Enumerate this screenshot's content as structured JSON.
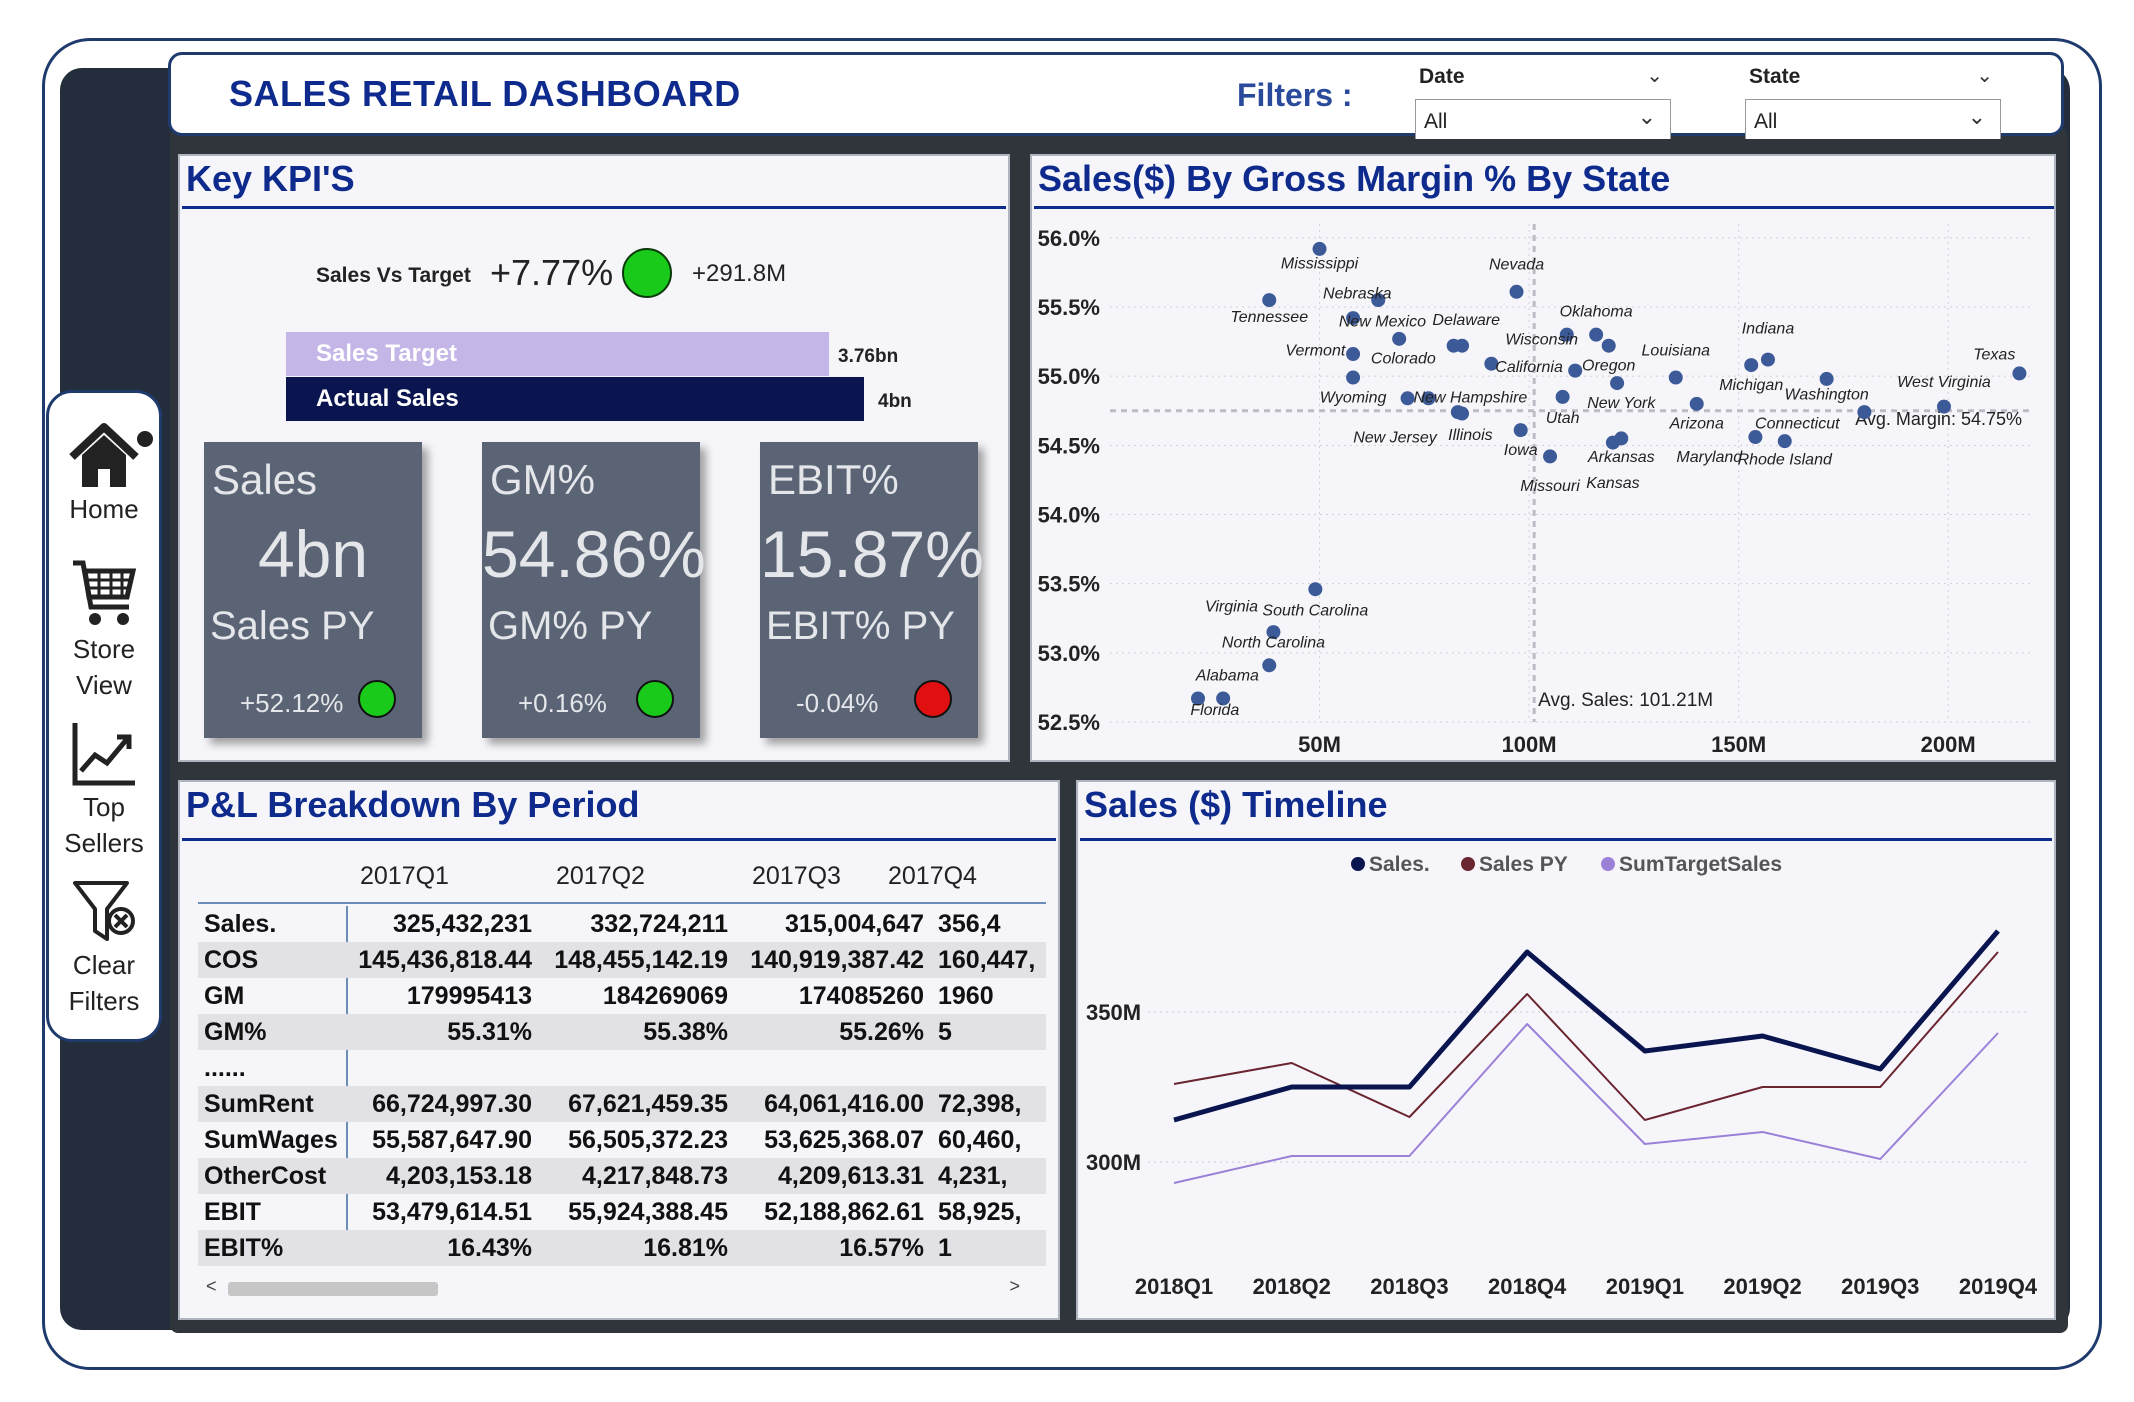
{
  "header": {
    "title": "SALES RETAIL DASHBOARD",
    "filters_label": "Filters :",
    "date_filter": {
      "label": "Date",
      "value": "All"
    },
    "state_filter": {
      "label": "State",
      "value": "All"
    }
  },
  "nav": {
    "items": [
      {
        "label_1": "Home",
        "label_2": "",
        "icon": "home-icon"
      },
      {
        "label_1": "Store",
        "label_2": "View",
        "icon": "cart-icon"
      },
      {
        "label_1": "Top",
        "label_2": "Sellers",
        "icon": "trend-icon"
      },
      {
        "label_1": "Clear",
        "label_2": "Filters",
        "icon": "clear-filter-icon"
      }
    ]
  },
  "kpi": {
    "title": "Key KPI'S",
    "sales_vs_target_label": "Sales Vs Target",
    "sales_vs_target_pct": "+7.77%",
    "sales_vs_target_abs": "+291.8M",
    "sales_target_label": "Sales Target",
    "sales_target_value": "3.76bn",
    "actual_sales_label": "Actual Sales",
    "actual_sales_value": "4bn",
    "sales_target_fraction": 0.94,
    "actual_sales_fraction": 1.0,
    "cards": [
      {
        "label": "Sales",
        "value": "4bn",
        "py_label": "Sales PY",
        "delta": "+52.12%",
        "status_color": "#1aca1a"
      },
      {
        "label": "GM%",
        "value": "54.86%",
        "py_label": "GM% PY",
        "delta": "+0.16%",
        "status_color": "#1aca1a"
      },
      {
        "label": "EBIT%",
        "value": "15.87%",
        "py_label": "EBIT% PY",
        "delta": "-0.04%",
        "status_color": "#e01010"
      }
    ]
  },
  "scatter": {
    "title": "Sales($) By Gross Margin % By State"
  },
  "pl": {
    "title": "P&L Breakdown By Period",
    "columns": [
      "2017Q1",
      "2017Q2",
      "2017Q3",
      "2017Q4"
    ],
    "rows": [
      {
        "label": "Sales.",
        "values": [
          "325,432,231",
          "332,724,211",
          "315,004,647",
          "356,4"
        ]
      },
      {
        "label": "COS",
        "values": [
          "145,436,818.44",
          "148,455,142.19",
          "140,919,387.42",
          "160,447,"
        ]
      },
      {
        "label": "GM",
        "values": [
          "179995413",
          "184269069",
          "174085260",
          "1960"
        ]
      },
      {
        "label": "GM%",
        "values": [
          "55.31%",
          "55.38%",
          "55.26%",
          "5"
        ]
      },
      {
        "label": "......",
        "values": [
          "",
          "",
          "",
          ""
        ]
      },
      {
        "label": "SumRent",
        "values": [
          "66,724,997.30",
          "67,621,459.35",
          "64,061,416.00",
          "72,398,"
        ]
      },
      {
        "label": "SumWages",
        "values": [
          "55,587,647.90",
          "56,505,372.23",
          "53,625,368.07",
          "60,460,"
        ]
      },
      {
        "label": "OtherCost",
        "values": [
          "4,203,153.18",
          "4,217,848.73",
          "4,209,613.31",
          "4,231,"
        ]
      },
      {
        "label": "EBIT",
        "values": [
          "53,479,614.51",
          "55,924,388.45",
          "52,188,862.61",
          "58,925,"
        ]
      },
      {
        "label": "EBIT%",
        "values": [
          "16.43%",
          "16.81%",
          "16.57%",
          "1"
        ]
      }
    ],
    "scroll_left": "<",
    "scroll_right": ">"
  },
  "timeline": {
    "title": "Sales ($) Timeline"
  },
  "chart_data": [
    {
      "type": "scatter",
      "title": "Sales($) By Gross Margin % By State",
      "xlabel": "",
      "ylabel": "",
      "x_ticks": [
        "50M",
        "100M",
        "150M",
        "200M"
      ],
      "x_tick_values": [
        50,
        100,
        150,
        200
      ],
      "y_ticks": [
        "56.0%",
        "55.5%",
        "55.0%",
        "54.5%",
        "54.0%",
        "53.5%",
        "53.0%",
        "52.5%"
      ],
      "y_tick_values": [
        56.0,
        55.5,
        55.0,
        54.5,
        54.0,
        53.5,
        53.0,
        52.5
      ],
      "xlim": [
        0,
        220
      ],
      "ylim": [
        52.5,
        56.1
      ],
      "point_color": "#3d5a98",
      "points": [
        {
          "label": "Mississippi",
          "x": 50,
          "y": 55.92
        },
        {
          "label": "Tennessee",
          "x": 38,
          "y": 55.55
        },
        {
          "label": "Nebraska",
          "x": 64,
          "y": 55.55
        },
        {
          "label": "New Mexico",
          "x": 58,
          "y": 55.42
        },
        {
          "label": "Vermont",
          "x": 58,
          "y": 55.16
        },
        {
          "label": "Colorado",
          "x": 69,
          "y": 55.27
        },
        {
          "label": "Delaware",
          "x": 82,
          "y": 55.22
        },
        {
          "label": "Delaware",
          "x": 84,
          "y": 55.22
        },
        {
          "label": "Nevada",
          "x": 97,
          "y": 55.61
        },
        {
          "label": "Wisconsin",
          "x": 109,
          "y": 55.3
        },
        {
          "label": "Oklahoma",
          "x": 116,
          "y": 55.3
        },
        {
          "label": "Oklahoma",
          "x": 119,
          "y": 55.22
        },
        {
          "label": "California",
          "x": 91,
          "y": 55.09
        },
        {
          "label": "Oregon",
          "x": 111,
          "y": 55.04
        },
        {
          "label": "Oregon",
          "x": 121,
          "y": 54.95
        },
        {
          "label": "Wyoming",
          "x": 58,
          "y": 54.99
        },
        {
          "label": "Wyoming",
          "x": 71,
          "y": 54.84
        },
        {
          "label": "New Hampshire",
          "x": 76,
          "y": 54.84
        },
        {
          "label": "New Hampshire",
          "x": 83,
          "y": 54.74
        },
        {
          "label": "Illinois",
          "x": 84,
          "y": 54.73
        },
        {
          "label": "New York",
          "x": 108,
          "y": 54.85
        },
        {
          "label": "Louisiana",
          "x": 135,
          "y": 54.99
        },
        {
          "label": "Indiana",
          "x": 153,
          "y": 55.08
        },
        {
          "label": "Indiana",
          "x": 157,
          "y": 55.12
        },
        {
          "label": "Michigan",
          "x": 140,
          "y": 54.8
        },
        {
          "label": "Washington",
          "x": 171,
          "y": 54.98
        },
        {
          "label": "Texas",
          "x": 217,
          "y": 55.02
        },
        {
          "label": "West Virginia",
          "x": 199,
          "y": 54.78
        },
        {
          "label": "Avg. Margin",
          "x": 180,
          "y": 54.74
        },
        {
          "label": "Iowa",
          "x": 98,
          "y": 54.61
        },
        {
          "label": "Missouri",
          "x": 105,
          "y": 54.42
        },
        {
          "label": "Arkansas",
          "x": 120,
          "y": 54.52
        },
        {
          "label": "Kansas",
          "x": 122,
          "y": 54.55
        },
        {
          "label": "Connecticut",
          "x": 154,
          "y": 54.56
        },
        {
          "label": "Rhode Island",
          "x": 161,
          "y": 54.53
        },
        {
          "label": "Virginia",
          "x": 49,
          "y": 53.46
        },
        {
          "label": "North Carolina",
          "x": 39,
          "y": 53.15
        },
        {
          "label": "Alabama",
          "x": 38,
          "y": 52.91
        },
        {
          "label": "Florida",
          "x": 21,
          "y": 52.67
        },
        {
          "label": "Florida",
          "x": 27,
          "y": 52.67
        }
      ],
      "labels": [
        {
          "text": "Mississippi",
          "x": 50,
          "y": 55.78
        },
        {
          "text": "Tennessee",
          "x": 38,
          "y": 55.39
        },
        {
          "text": "Nebraska",
          "x": 59,
          "y": 55.56
        },
        {
          "text": "New Mexico",
          "x": 65,
          "y": 55.36
        },
        {
          "text": "Vermont",
          "x": 49,
          "y": 55.15
        },
        {
          "text": "Colorado",
          "x": 70,
          "y": 55.09
        },
        {
          "text": "Delaware",
          "x": 85,
          "y": 55.37
        },
        {
          "text": "Nevada",
          "x": 97,
          "y": 55.77
        },
        {
          "text": "Oklahoma",
          "x": 116,
          "y": 55.43
        },
        {
          "text": "Wisconsin",
          "x": 103,
          "y": 55.23
        },
        {
          "text": "California",
          "x": 100,
          "y": 55.03
        },
        {
          "text": "Oregon",
          "x": 119,
          "y": 55.04
        },
        {
          "text": "Wyoming",
          "x": 58,
          "y": 54.81
        },
        {
          "text": "New Hampshire",
          "x": 86,
          "y": 54.81
        },
        {
          "text": "New York",
          "x": 122,
          "y": 54.77
        },
        {
          "text": "Louisiana",
          "x": 135,
          "y": 55.15
        },
        {
          "text": "Indiana",
          "x": 157,
          "y": 55.31
        },
        {
          "text": "Michigan",
          "x": 153,
          "y": 54.9
        },
        {
          "text": "Washington",
          "x": 171,
          "y": 54.83
        },
        {
          "text": "Texas",
          "x": 211,
          "y": 55.12
        },
        {
          "text": "West Virginia",
          "x": 199,
          "y": 54.92
        },
        {
          "text": "Utah",
          "x": 108,
          "y": 54.66
        },
        {
          "text": "Arizona",
          "x": 140,
          "y": 54.62
        },
        {
          "text": "Connecticut",
          "x": 164,
          "y": 54.62
        },
        {
          "text": "New Jersey",
          "x": 68,
          "y": 54.52
        },
        {
          "text": "Illinois",
          "x": 86,
          "y": 54.54
        },
        {
          "text": "Iowa",
          "x": 98,
          "y": 54.43
        },
        {
          "text": "Arkansas",
          "x": 122,
          "y": 54.38
        },
        {
          "text": "Maryland",
          "x": 143,
          "y": 54.38
        },
        {
          "text": "Rhode Island",
          "x": 161,
          "y": 54.36
        },
        {
          "text": "Missouri",
          "x": 105,
          "y": 54.17
        },
        {
          "text": "Kansas",
          "x": 120,
          "y": 54.19
        },
        {
          "text": "Virginia",
          "x": 29,
          "y": 53.3
        },
        {
          "text": "South Carolina",
          "x": 49,
          "y": 53.27
        },
        {
          "text": "North Carolina",
          "x": 39,
          "y": 53.04
        },
        {
          "text": "Alabama",
          "x": 28,
          "y": 52.8
        },
        {
          "text": "Florida",
          "x": 25,
          "y": 52.55
        }
      ],
      "avg_x": 101.21,
      "avg_x_label": "Avg. Sales: 101.21M",
      "avg_y": 54.75,
      "avg_y_label": "Avg. Margin: 54.75%",
      "grid": true
    },
    {
      "type": "line",
      "title": "Sales ($) Timeline",
      "categories": [
        "2018Q1",
        "2018Q2",
        "2018Q3",
        "2018Q4",
        "2019Q1",
        "2019Q2",
        "2019Q3",
        "2019Q4"
      ],
      "y_ticks": [
        "350M",
        "300M"
      ],
      "y_tick_values": [
        350,
        300
      ],
      "ylim": [
        270,
        390
      ],
      "legend_position": "top",
      "series": [
        {
          "name": "Sales.",
          "color": "#0a1550",
          "values": [
            314,
            325,
            325,
            370,
            337,
            342,
            331,
            377
          ]
        },
        {
          "name": "Sales PY",
          "color": "#6a2530",
          "values": [
            326,
            333,
            315,
            356,
            314,
            325,
            325,
            370
          ]
        },
        {
          "name": "SumTargetSales",
          "color": "#9b80d8",
          "values": [
            293,
            302,
            302,
            346,
            306,
            310,
            301,
            343
          ]
        }
      ]
    }
  ]
}
